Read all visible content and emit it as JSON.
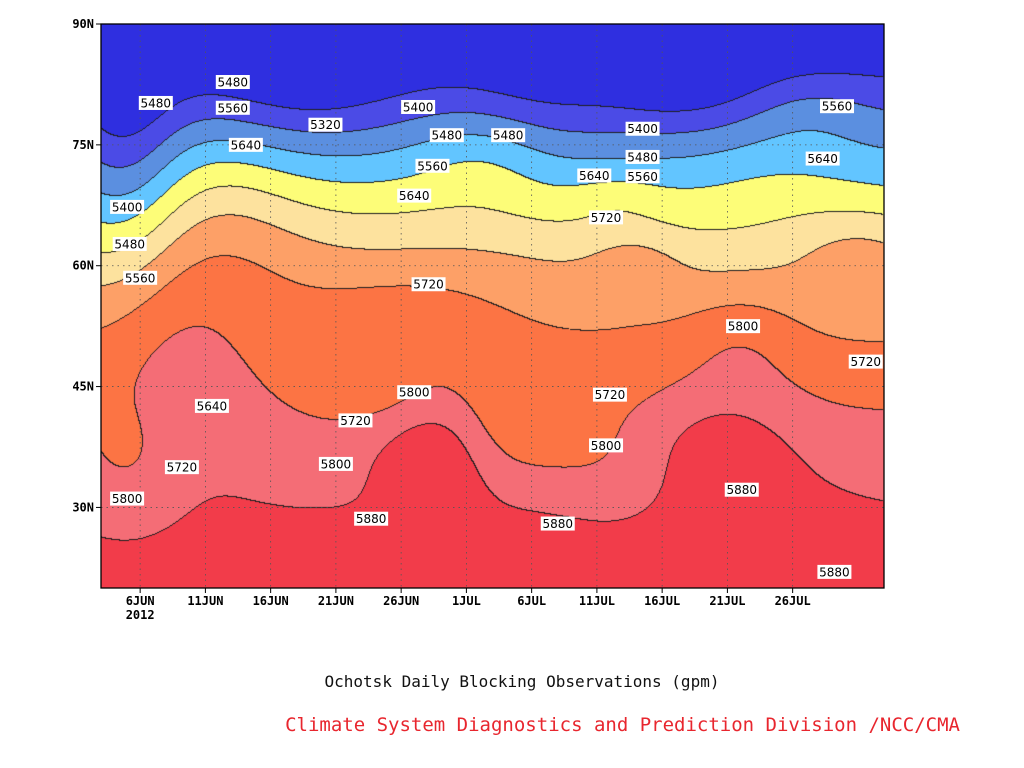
{
  "chart_data": {
    "type": "contour",
    "title": "",
    "caption": "Ochotsk Daily Blocking Observations (gpm)",
    "credit": "Climate System Diagnostics and Prediction Division /NCC/CMA",
    "x_ticks": [
      {
        "label": "6JUN",
        "sub": "2012",
        "day": 6
      },
      {
        "label": "11JUN",
        "sub": "",
        "day": 11
      },
      {
        "label": "16JUN",
        "sub": "",
        "day": 16
      },
      {
        "label": "21JUN",
        "sub": "",
        "day": 21
      },
      {
        "label": "26JUN",
        "sub": "",
        "day": 26
      },
      {
        "label": "1JUL",
        "sub": "",
        "day": 31
      },
      {
        "label": "6JUL",
        "sub": "",
        "day": 36
      },
      {
        "label": "11JUL",
        "sub": "",
        "day": 41
      },
      {
        "label": "16JUL",
        "sub": "",
        "day": 46
      },
      {
        "label": "21JUL",
        "sub": "",
        "day": 51
      },
      {
        "label": "26JUL",
        "sub": "",
        "day": 56
      }
    ],
    "xlim": [
      3,
      63
    ],
    "y_ticks": [
      {
        "label": "90N",
        "lat": 90
      },
      {
        "label": "75N",
        "lat": 75
      },
      {
        "label": "60N",
        "lat": 60
      },
      {
        "label": "45N",
        "lat": 45
      },
      {
        "label": "30N",
        "lat": 30
      }
    ],
    "ylim": [
      20,
      90
    ],
    "grid": "dotted",
    "levels": [
      5320,
      5400,
      5480,
      5560,
      5640,
      5720,
      5800,
      5880
    ],
    "level_colors": {
      "below_5320": "#2f2fe0",
      "5320_5400": "#4b4be6",
      "5400_5480": "#5b8fe0",
      "5480_5560": "#62c5ff",
      "5560_5640": "#fdfd78",
      "5640_5720": "#fde29e",
      "5720_5800": "#fda067",
      "5800_5880": "#fc7444",
      "5880_5960": "#f46d76",
      "above_5960": "#f23c4a"
    },
    "contour_labels": [
      {
        "text": "5480",
        "day": 7.2,
        "lat": 80.2
      },
      {
        "text": "5400",
        "day": 5.0,
        "lat": 67.3
      },
      {
        "text": "5480",
        "day": 5.2,
        "lat": 62.7
      },
      {
        "text": "5560",
        "day": 6.0,
        "lat": 58.5
      },
      {
        "text": "5480",
        "day": 13.1,
        "lat": 82.8
      },
      {
        "text": "5560",
        "day": 13.1,
        "lat": 79.6
      },
      {
        "text": "5640",
        "day": 14.1,
        "lat": 75.0
      },
      {
        "text": "5320",
        "day": 20.2,
        "lat": 77.5
      },
      {
        "text": "5400",
        "day": 27.3,
        "lat": 79.7
      },
      {
        "text": "5480",
        "day": 29.5,
        "lat": 76.2
      },
      {
        "text": "5480",
        "day": 34.2,
        "lat": 76.2
      },
      {
        "text": "5560",
        "day": 28.4,
        "lat": 72.4
      },
      {
        "text": "5640",
        "day": 27.0,
        "lat": 68.7
      },
      {
        "text": "5720",
        "day": 28.1,
        "lat": 57.7
      },
      {
        "text": "5400",
        "day": 44.5,
        "lat": 77.0
      },
      {
        "text": "5480",
        "day": 44.5,
        "lat": 73.5
      },
      {
        "text": "5560",
        "day": 44.5,
        "lat": 71.1
      },
      {
        "text": "5640",
        "day": 40.8,
        "lat": 71.2
      },
      {
        "text": "5720",
        "day": 41.7,
        "lat": 66.0
      },
      {
        "text": "5800",
        "day": 52.2,
        "lat": 52.5
      },
      {
        "text": "5560",
        "day": 59.4,
        "lat": 79.8
      },
      {
        "text": "5640",
        "day": 58.3,
        "lat": 73.3
      },
      {
        "text": "5720",
        "day": 61.6,
        "lat": 48.1
      },
      {
        "text": "5640",
        "day": 11.5,
        "lat": 42.6
      },
      {
        "text": "5720",
        "day": 9.2,
        "lat": 35.0
      },
      {
        "text": "5720",
        "day": 22.5,
        "lat": 40.8
      },
      {
        "text": "5800",
        "day": 27.0,
        "lat": 44.3
      },
      {
        "text": "5720",
        "day": 42.0,
        "lat": 44.0
      },
      {
        "text": "5800",
        "day": 21.0,
        "lat": 35.4
      },
      {
        "text": "5800",
        "day": 41.7,
        "lat": 37.7
      },
      {
        "text": "5800",
        "day": 5.0,
        "lat": 31.1
      },
      {
        "text": "5880",
        "day": 23.7,
        "lat": 28.6
      },
      {
        "text": "5880",
        "day": 38.0,
        "lat": 28.0
      },
      {
        "text": "5880",
        "day": 52.1,
        "lat": 32.2
      },
      {
        "text": "5880",
        "day": 59.2,
        "lat": 22.0
      }
    ]
  }
}
